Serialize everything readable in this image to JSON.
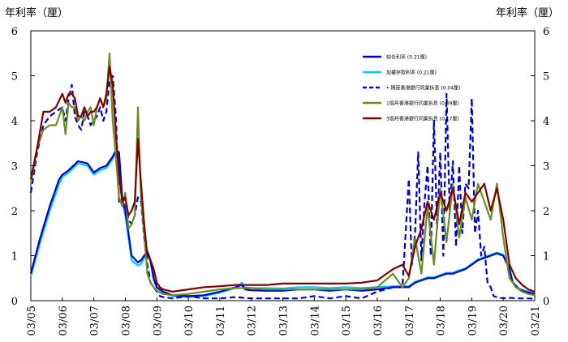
{
  "chart_data": {
    "type": "line",
    "ylabel_left": "年利率（厘）",
    "ylabel_right": "年利率（厘）",
    "ylim": [
      0,
      6
    ],
    "yticks": [
      "0",
      "1",
      "2",
      "3",
      "4",
      "5",
      "6"
    ],
    "xlim": [
      0,
      16
    ],
    "categories": [
      "03/05",
      "03/06",
      "03/07",
      "03/08",
      "03/09",
      "03/10",
      "03/11",
      "03/12",
      "03/13",
      "03/14",
      "03/15",
      "03/16",
      "03/17",
      "03/18",
      "03/19",
      "03/20",
      "03/21"
    ],
    "grid": false,
    "legend_position": "top-right",
    "series": [
      {
        "name": "綜合利率 (0.21厘)",
        "color": "#0000cc",
        "dash": "solid",
        "x": [
          0,
          0.3,
          0.6,
          0.9,
          1.0,
          1.2,
          1.5,
          1.8,
          2.0,
          2.2,
          2.4,
          2.5,
          2.6,
          2.7,
          2.8,
          2.9,
          3.0,
          3.2,
          3.4,
          3.5,
          3.6,
          3.7,
          3.8,
          3.9,
          4.0,
          4.2,
          4.5,
          5.0,
          5.5,
          6.0,
          6.5,
          6.7,
          6.8,
          7.0,
          7.5,
          8.0,
          8.5,
          9.0,
          9.5,
          10.0,
          10.5,
          11.0,
          11.5,
          12.0,
          12.2,
          12.4,
          12.6,
          12.8,
          13.0,
          13.2,
          13.4,
          13.6,
          13.8,
          14.0,
          14.2,
          14.4,
          14.6,
          14.8,
          15.0,
          15.2,
          15.3,
          15.5,
          15.7,
          16.0
        ],
        "y": [
          0.6,
          1.4,
          2.1,
          2.7,
          2.8,
          2.9,
          3.1,
          3.05,
          2.85,
          2.95,
          3.0,
          3.1,
          3.2,
          3.35,
          3.3,
          2.3,
          2.0,
          1.0,
          0.85,
          0.9,
          1.0,
          1.1,
          0.9,
          0.5,
          0.3,
          0.2,
          0.12,
          0.1,
          0.12,
          0.2,
          0.3,
          0.35,
          0.25,
          0.23,
          0.22,
          0.22,
          0.25,
          0.25,
          0.22,
          0.25,
          0.22,
          0.25,
          0.3,
          0.3,
          0.4,
          0.45,
          0.5,
          0.5,
          0.55,
          0.6,
          0.6,
          0.65,
          0.7,
          0.8,
          0.9,
          0.95,
          1.0,
          1.05,
          1.0,
          0.7,
          0.4,
          0.25,
          0.2,
          0.15
        ]
      },
      {
        "name": "加權存款利率 (0.21厘)",
        "color": "#00ccff",
        "dash": "solid",
        "x": [
          0,
          0.3,
          0.6,
          0.9,
          1.0,
          1.2,
          1.5,
          1.8,
          2.0,
          2.2,
          2.4,
          2.5,
          2.6,
          2.7,
          2.8,
          2.9,
          3.0,
          3.2,
          3.4,
          3.5,
          3.6,
          3.7,
          3.8,
          3.9,
          4.0,
          4.2,
          4.5,
          5.0,
          5.5,
          6.0,
          6.5,
          6.7,
          6.8,
          7.0,
          7.5,
          8.0,
          8.5,
          9.0,
          9.5,
          10.0,
          10.5,
          11.0,
          11.5,
          12.0,
          12.2,
          12.4,
          12.6,
          12.8,
          13.0,
          13.2,
          13.4,
          13.6,
          13.8,
          14.0,
          14.2,
          14.4,
          14.6,
          14.8,
          15.0,
          15.2,
          15.3,
          15.5,
          15.7,
          16.0
        ],
        "y": [
          0.55,
          1.3,
          2.0,
          2.6,
          2.75,
          2.85,
          3.05,
          3.0,
          2.8,
          2.9,
          2.95,
          3.05,
          3.15,
          3.3,
          3.25,
          2.2,
          1.9,
          0.9,
          0.78,
          0.82,
          0.95,
          1.05,
          0.85,
          0.45,
          0.28,
          0.18,
          0.1,
          0.08,
          0.1,
          0.18,
          0.28,
          0.4,
          0.3,
          0.28,
          0.28,
          0.27,
          0.3,
          0.3,
          0.28,
          0.3,
          0.28,
          0.3,
          0.32,
          0.32,
          0.42,
          0.47,
          0.52,
          0.52,
          0.57,
          0.62,
          0.62,
          0.68,
          0.72,
          0.82,
          0.92,
          0.97,
          1.02,
          1.07,
          1.02,
          0.72,
          0.42,
          0.27,
          0.22,
          0.17
        ]
      },
      {
        "name": "• 隔夜香港銀行同業拆息 (0.04厘)",
        "color": "#0000cc",
        "dash": "dashed",
        "x": [
          0,
          0.2,
          0.4,
          0.6,
          0.8,
          1.0,
          1.1,
          1.2,
          1.3,
          1.4,
          1.5,
          1.6,
          1.7,
          1.8,
          1.9,
          2.0,
          2.1,
          2.2,
          2.3,
          2.4,
          2.5,
          2.6,
          2.7,
          2.8,
          2.9,
          3.0,
          3.1,
          3.2,
          3.3,
          3.4,
          3.5,
          3.6,
          3.7,
          3.8,
          3.9,
          4.0,
          4.1,
          4.2,
          4.5,
          5.0,
          5.5,
          6.0,
          6.5,
          7.0,
          7.5,
          8.0,
          8.5,
          9.0,
          9.5,
          10.0,
          10.5,
          11.0,
          11.5,
          11.8,
          12.0,
          12.1,
          12.2,
          12.3,
          12.4,
          12.5,
          12.6,
          12.7,
          12.8,
          12.9,
          13.0,
          13.1,
          13.2,
          13.3,
          13.4,
          13.5,
          13.6,
          13.7,
          13.8,
          13.9,
          14.0,
          14.1,
          14.2,
          14.3,
          14.4,
          14.5,
          14.6,
          14.7,
          14.8,
          14.9,
          15.0,
          15.1,
          15.2,
          15.3,
          15.4,
          15.5,
          15.6,
          15.8,
          16.0
        ],
        "y": [
          2.4,
          3.3,
          3.9,
          4.1,
          4.2,
          4.3,
          4.0,
          4.5,
          4.8,
          4.1,
          3.9,
          3.8,
          4.2,
          4.1,
          3.9,
          4.0,
          4.1,
          4.3,
          4.0,
          4.2,
          4.9,
          5.0,
          4.1,
          2.2,
          2.3,
          2.2,
          1.8,
          1.7,
          1.9,
          2.3,
          2.2,
          1.4,
          0.8,
          0.4,
          0.3,
          0.2,
          0.1,
          0.08,
          0.05,
          0.1,
          0.05,
          0.05,
          0.08,
          0.05,
          0.05,
          0.05,
          0.05,
          0.1,
          0.05,
          0.1,
          0.05,
          0.2,
          0.3,
          0.3,
          2.7,
          0.8,
          1.5,
          3.3,
          0.9,
          2.2,
          3.0,
          1.0,
          4.0,
          1.6,
          3.3,
          1.0,
          4.6,
          2.0,
          3.1,
          1.2,
          3.0,
          1.5,
          2.6,
          2.5,
          4.5,
          1.5,
          2.0,
          1.0,
          1.2,
          0.4,
          0.3,
          0.1,
          0.08,
          0.06,
          0.06,
          0.05,
          0.06,
          0.06,
          0.05,
          0.05,
          0.05,
          0.05,
          0.04
        ]
      },
      {
        "name": "1個月香港銀行同業拆息 (0.09厘)",
        "color": "#6b8e23",
        "dash": "solid",
        "x": [
          0,
          0.2,
          0.4,
          0.6,
          0.8,
          1.0,
          1.1,
          1.2,
          1.3,
          1.4,
          1.5,
          1.6,
          1.7,
          1.8,
          1.9,
          2.0,
          2.1,
          2.2,
          2.3,
          2.4,
          2.5,
          2.6,
          2.7,
          2.8,
          2.9,
          3.0,
          3.1,
          3.2,
          3.3,
          3.4,
          3.5,
          3.6,
          3.7,
          3.8,
          3.9,
          4.0,
          4.1,
          4.2,
          4.5,
          5.0,
          5.5,
          6.0,
          6.5,
          7.0,
          7.5,
          8.0,
          8.5,
          9.0,
          9.5,
          10.0,
          10.5,
          11.0,
          11.5,
          11.8,
          12.0,
          12.2,
          12.4,
          12.6,
          12.8,
          13.0,
          13.2,
          13.4,
          13.6,
          13.8,
          14.0,
          14.2,
          14.4,
          14.6,
          14.8,
          15.0,
          15.2,
          15.4,
          15.6,
          15.8,
          16.0
        ],
        "y": [
          2.6,
          3.4,
          3.8,
          3.9,
          3.9,
          4.3,
          3.7,
          4.4,
          4.3,
          4.3,
          4.0,
          4.1,
          4.0,
          4.2,
          4.3,
          3.9,
          4.3,
          4.5,
          4.3,
          4.5,
          5.5,
          4.0,
          3.2,
          2.3,
          2.1,
          2.4,
          1.6,
          1.7,
          1.9,
          4.3,
          2.3,
          1.5,
          0.6,
          0.4,
          0.3,
          0.22,
          0.18,
          0.15,
          0.12,
          0.15,
          0.2,
          0.25,
          0.28,
          0.28,
          0.25,
          0.25,
          0.25,
          0.25,
          0.25,
          0.25,
          0.25,
          0.3,
          0.6,
          0.3,
          0.5,
          1.4,
          0.6,
          2.1,
          0.8,
          2.5,
          1.3,
          2.6,
          1.4,
          2.3,
          1.8,
          2.6,
          2.2,
          1.8,
          2.6,
          1.4,
          0.5,
          0.3,
          0.2,
          0.15,
          0.12
        ]
      },
      {
        "name": "3個月香港銀行同業拆息 (0.17厘)",
        "color": "#800000",
        "dash": "solid",
        "x": [
          0,
          0.2,
          0.4,
          0.6,
          0.8,
          1.0,
          1.1,
          1.2,
          1.3,
          1.4,
          1.5,
          1.6,
          1.7,
          1.8,
          1.9,
          2.0,
          2.1,
          2.2,
          2.3,
          2.4,
          2.5,
          2.6,
          2.7,
          2.8,
          2.9,
          3.0,
          3.1,
          3.2,
          3.3,
          3.4,
          3.5,
          3.6,
          3.7,
          3.8,
          3.9,
          4.0,
          4.1,
          4.2,
          4.5,
          5.0,
          5.5,
          6.0,
          6.5,
          7.0,
          7.5,
          8.0,
          8.5,
          9.0,
          9.5,
          10.0,
          10.5,
          11.0,
          11.5,
          11.8,
          12.0,
          12.2,
          12.4,
          12.6,
          12.8,
          13.0,
          13.2,
          13.4,
          13.6,
          13.8,
          14.0,
          14.2,
          14.4,
          14.6,
          14.8,
          15.0,
          15.2,
          15.4,
          15.6,
          15.8,
          16.0
        ],
        "y": [
          2.7,
          3.4,
          4.2,
          4.2,
          4.3,
          4.6,
          4.4,
          4.6,
          4.6,
          4.5,
          4.1,
          4.1,
          4.3,
          4.1,
          4.2,
          4.2,
          4.3,
          4.5,
          4.3,
          4.6,
          5.2,
          4.8,
          3.7,
          2.8,
          2.2,
          2.3,
          1.9,
          2.0,
          2.2,
          3.6,
          2.6,
          1.7,
          1.0,
          0.9,
          0.7,
          0.4,
          0.3,
          0.25,
          0.2,
          0.25,
          0.3,
          0.32,
          0.35,
          0.35,
          0.35,
          0.38,
          0.38,
          0.38,
          0.38,
          0.38,
          0.4,
          0.45,
          0.7,
          0.8,
          0.55,
          1.2,
          1.6,
          2.2,
          1.8,
          2.4,
          2.0,
          2.5,
          1.7,
          2.4,
          2.2,
          2.4,
          2.6,
          2.0,
          2.5,
          1.8,
          0.8,
          0.5,
          0.35,
          0.25,
          0.2
        ]
      }
    ]
  }
}
